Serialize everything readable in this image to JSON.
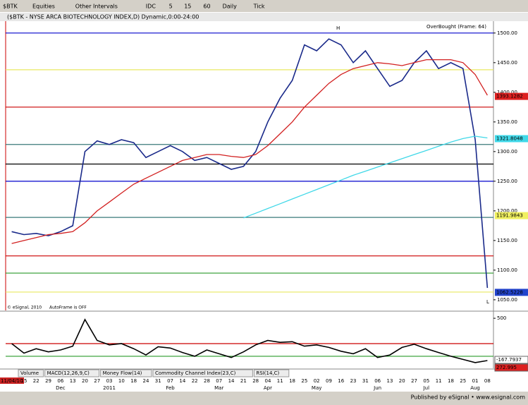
{
  "toolbar": {
    "symbol": "$BTK",
    "items": [
      "Equities",
      "Other Intervals",
      "IDC",
      "5",
      "15",
      "60",
      "Daily",
      "Tick"
    ]
  },
  "chart_data": [
    {
      "type": "line",
      "title": "($BTK - NYSE ARCA BIOTECHNOLOGY INDEX,D) Dynamic,0:00-24:00",
      "annotations": [
        "OverBought (Frame: 64)",
        "© eSignal, 2010",
        "AutoFrame is OFF",
        "H",
        "L"
      ],
      "categories": [
        "11/04/10",
        "15",
        "22",
        "29",
        "06",
        "13",
        "20",
        "27",
        "03",
        "10",
        "18",
        "24",
        "31",
        "07",
        "14",
        "22",
        "28",
        "07",
        "14",
        "21",
        "28",
        "04",
        "11",
        "18",
        "25",
        "02",
        "09",
        "16",
        "23",
        "31",
        "06",
        "13",
        "20",
        "27",
        "05",
        "11",
        "18",
        "25",
        "01",
        "08"
      ],
      "month_labels": [
        null,
        null,
        null,
        null,
        "Dec",
        null,
        null,
        null,
        "2011",
        null,
        null,
        null,
        null,
        "Feb",
        null,
        null,
        null,
        "Mar",
        null,
        null,
        null,
        "Apr",
        null,
        null,
        null,
        "May",
        null,
        null,
        null,
        null,
        "Jun",
        null,
        null,
        null,
        "Jul",
        null,
        null,
        null,
        "Aug",
        null
      ],
      "series": [
        {
          "color": "#1a2a8a",
          "values": [
            1165,
            1160,
            1162,
            1158,
            1165,
            1175,
            1300,
            1318,
            1312,
            1320,
            1315,
            1290,
            1300,
            1310,
            1300,
            1285,
            1290,
            1280,
            1270,
            1275,
            1300,
            1350,
            1390,
            1420,
            1480,
            1470,
            1490,
            1480,
            1450,
            1470,
            1440,
            1410,
            1420,
            1450,
            1470,
            1440,
            1450,
            1440,
            1320,
            1070
          ]
        },
        {
          "color": "#d22020",
          "values": [
            1145,
            1150,
            1155,
            1160,
            1162,
            1165,
            1180,
            1200,
            1215,
            1230,
            1245,
            1255,
            1265,
            1275,
            1285,
            1290,
            1295,
            1295,
            1292,
            1290,
            1295,
            1310,
            1330,
            1350,
            1375,
            1395,
            1415,
            1430,
            1440,
            1445,
            1450,
            1448,
            1445,
            1450,
            1455,
            1455,
            1455,
            1450,
            1430,
            1395
          ]
        },
        {
          "color": "#40d8e8",
          "values": [
            null,
            null,
            null,
            null,
            null,
            null,
            null,
            null,
            null,
            null,
            null,
            null,
            null,
            null,
            null,
            null,
            null,
            null,
            null,
            1188,
            1196,
            1204,
            1212,
            1220,
            1228,
            1236,
            1244,
            1252,
            1260,
            1267,
            1274,
            1281,
            1288,
            1295,
            1302,
            1309,
            1316,
            1322,
            1326,
            1323
          ]
        }
      ],
      "ylim": [
        1032,
        1520
      ],
      "yticks": [
        {
          "value": 1500,
          "label": "1500.00"
        },
        {
          "value": 1450,
          "label": "1450.00"
        },
        {
          "value": 1400,
          "label": "1400.00"
        },
        {
          "value": 1350,
          "label": "1350.00"
        },
        {
          "value": 1300,
          "label": "1300.00"
        },
        {
          "value": 1250,
          "label": "1250.00"
        },
        {
          "value": 1200,
          "label": "1200.00"
        },
        {
          "value": 1150,
          "label": "1150.00"
        },
        {
          "value": 1100,
          "label": "1100.00"
        },
        {
          "value": 1050,
          "label": "1050.00"
        }
      ],
      "levels": [
        {
          "value": 1500,
          "color": "#0000cc"
        },
        {
          "value": 1438,
          "color": "#e8e860"
        },
        {
          "value": 1375,
          "color": "#cc0000"
        },
        {
          "value": 1312,
          "color": "#3a7a7a"
        },
        {
          "value": 1279,
          "color": "#000000"
        },
        {
          "value": 1250,
          "color": "#0000cc"
        },
        {
          "value": 1189,
          "color": "#3a7a7a"
        },
        {
          "value": 1124,
          "color": "#cc0000"
        },
        {
          "value": 1095,
          "color": "#2a9a2a"
        },
        {
          "value": 1063,
          "color": "#e8e860"
        }
      ],
      "markers": [
        {
          "value": 1393.1282,
          "color": "#dd2020"
        },
        {
          "value": 1321.8048,
          "color": "#40d8e8"
        },
        {
          "value": 1191.9843,
          "color": "#f0f060"
        },
        {
          "value": 1062.5228,
          "color": "#2244cc"
        }
      ]
    },
    {
      "type": "line",
      "series": [
        {
          "color": "#000000",
          "values": [
            100,
            -50,
            20,
            -30,
            0,
            60,
            480,
            150,
            80,
            100,
            20,
            -80,
            50,
            30,
            -40,
            -100,
            0,
            -60,
            -120,
            -30,
            80,
            150,
            120,
            130,
            60,
            80,
            40,
            -20,
            -60,
            20,
            -120,
            -80,
            40,
            90,
            20,
            -40,
            -100,
            -150,
            -200,
            -168
          ]
        }
      ],
      "ylim": [
        -290,
        590
      ],
      "yticks": [
        500
      ],
      "levels": [
        {
          "value": 100,
          "color": "#cc0000"
        },
        {
          "value": -100,
          "color": "#2a9a2a"
        }
      ],
      "readouts": [
        -167.7937,
        272.995
      ]
    }
  ],
  "tabs": [
    "Volume",
    "MACD(12,26,9,C)",
    "Money Flow(14)",
    "Commodity Channel Index(23,C)",
    "RSI(14,C)"
  ],
  "footer": "Published by eSignal • www.esignal.com"
}
